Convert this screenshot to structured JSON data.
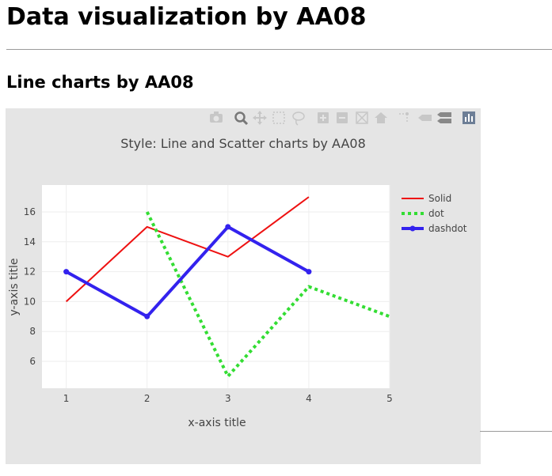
{
  "page": {
    "heading": "Data visualization by AA08",
    "subheading": "Line charts by AA08"
  },
  "modebar": [
    {
      "name": "camera-icon",
      "title": "Download plot as a png"
    },
    {
      "name": "zoom-icon",
      "title": "Zoom"
    },
    {
      "name": "pan-icon",
      "title": "Pan"
    },
    {
      "name": "box-select-icon",
      "title": "Box Select"
    },
    {
      "name": "lasso-select-icon",
      "title": "Lasso Select"
    },
    {
      "name": "zoom-in-icon",
      "title": "Zoom in"
    },
    {
      "name": "zoom-out-icon",
      "title": "Zoom out"
    },
    {
      "name": "autoscale-icon",
      "title": "Autoscale"
    },
    {
      "name": "home-icon",
      "title": "Reset axes"
    },
    {
      "name": "spike-lines-icon",
      "title": "Toggle Spike Lines"
    },
    {
      "name": "hover-closest-icon",
      "title": "Show closest data on hover"
    },
    {
      "name": "hover-compare-icon",
      "title": "Compare data on hover"
    },
    {
      "name": "plotly-logo-icon",
      "title": "Produced with Plotly"
    }
  ],
  "chart_data": {
    "type": "line",
    "title": "Style: Line and Scatter charts by AA08",
    "xlabel": "x-axis title",
    "ylabel": "y-axis title",
    "xlim": [
      0.7,
      5
    ],
    "ylim": [
      4.2,
      17.8
    ],
    "xticks": [
      1,
      2,
      3,
      4,
      5
    ],
    "yticks": [
      6,
      8,
      10,
      12,
      14,
      16
    ],
    "grid": true,
    "legend_position": "top-right",
    "plot_bgcolor": "#ffffff",
    "paper_bgcolor": "#e5e5e5",
    "series": [
      {
        "name": "Solid",
        "x": [
          1,
          2,
          3,
          4
        ],
        "y": [
          10,
          15,
          13,
          17
        ],
        "color": "#ee1111",
        "dash": "solid",
        "width": 2,
        "markers": false
      },
      {
        "name": "dot",
        "x": [
          2,
          3,
          4,
          5
        ],
        "y": [
          16,
          5,
          11,
          9
        ],
        "color": "#33dd33",
        "dash": "dot",
        "width": 4,
        "markers": false
      },
      {
        "name": "dashdot",
        "x": [
          1,
          2,
          3,
          4
        ],
        "y": [
          12,
          9,
          15,
          12
        ],
        "color": "#3322ee",
        "dash": "solid",
        "width": 4,
        "markers": true
      }
    ]
  }
}
